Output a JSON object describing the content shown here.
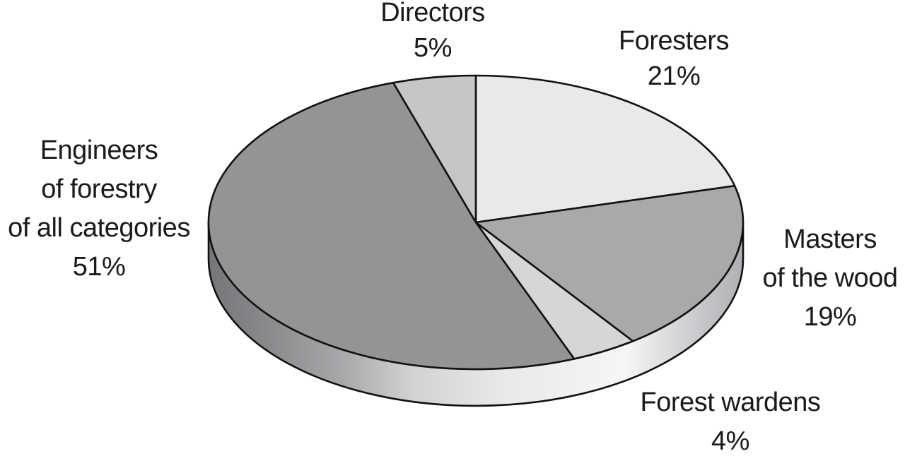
{
  "page": {
    "background": "#ffffff"
  },
  "chart_data": {
    "type": "pie",
    "projection": "3d-ellipse",
    "direction": "clockwise",
    "start_angle_deg": 0,
    "unit": "%",
    "title": "",
    "legend": "none",
    "slices": [
      {
        "label": "Foresters",
        "value": 21,
        "color": "#e9e9eb"
      },
      {
        "label": "Masters of the wood",
        "value": 19,
        "color": "#a9a9ac"
      },
      {
        "label": "Forest wardens",
        "value": 4,
        "color": "#d6d6d8"
      },
      {
        "label": "Engineers of forestry of all categories",
        "value": 51,
        "color": "#949497"
      },
      {
        "label": "Directors",
        "value": 5,
        "color": "#c6c6c9"
      }
    ],
    "outline_color": "#111111",
    "text_color": "#1a1a1a",
    "rim_gradient": [
      "#76767a",
      "#88888b",
      "#a8a8ab",
      "#d2d2d4",
      "#e9e9eb",
      "#f6f6f8",
      "#c8c8cb",
      "#b0b0b4"
    ],
    "callouts": [
      {
        "slice": "Directors",
        "lines": [
          "Directors",
          "5%"
        ]
      },
      {
        "slice": "Foresters",
        "lines": [
          "Foresters",
          "21%"
        ]
      },
      {
        "slice": "Engineers of forestry of all categories",
        "lines": [
          "Engineers",
          "of forestry",
          "of all categories",
          "51%"
        ]
      },
      {
        "slice": "Masters of the wood",
        "lines": [
          "Masters",
          "of the wood",
          "19%"
        ]
      },
      {
        "slice": "Forest wardens",
        "lines": [
          "Forest wardens",
          "4%"
        ]
      }
    ]
  }
}
